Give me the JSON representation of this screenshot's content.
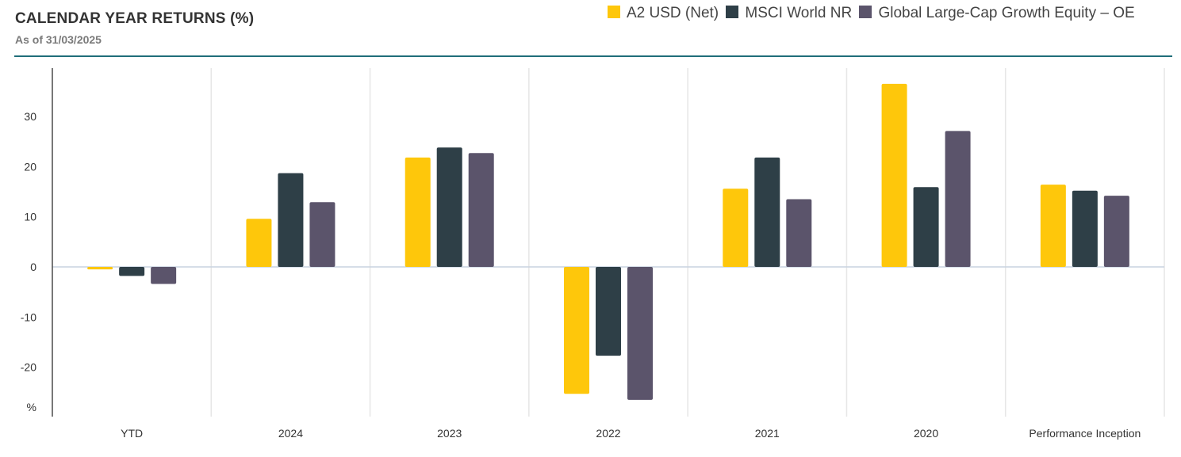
{
  "header": {
    "title": "CALENDAR YEAR RETURNS (%)",
    "subtitle": "As of 31/03/2025"
  },
  "chart_data": {
    "type": "bar",
    "categories": [
      "YTD",
      "2024",
      "2023",
      "2022",
      "2021",
      "2020",
      "Performance Inception"
    ],
    "series": [
      {
        "name": "A2 USD (Net)",
        "color": "#fec70b",
        "values": [
          -0.5,
          9.6,
          21.8,
          -25.3,
          15.6,
          36.5,
          16.4
        ]
      },
      {
        "name": "MSCI World NR",
        "color": "#2e3f47",
        "values": [
          -1.8,
          18.7,
          23.8,
          -17.7,
          21.8,
          15.9,
          15.2
        ]
      },
      {
        "name": "Global Large-Cap Growth Equity – OE",
        "color": "#5b546b",
        "values": [
          -3.4,
          12.9,
          22.7,
          -26.5,
          13.5,
          27.1,
          14.2
        ]
      }
    ],
    "y_ticks": [
      "30",
      "20",
      "10",
      "0",
      "-10",
      "-20"
    ],
    "y_unit_label": "%",
    "ylim": [
      -29,
      40
    ],
    "grid": "vertical category separators",
    "legend_position": "top-right"
  }
}
